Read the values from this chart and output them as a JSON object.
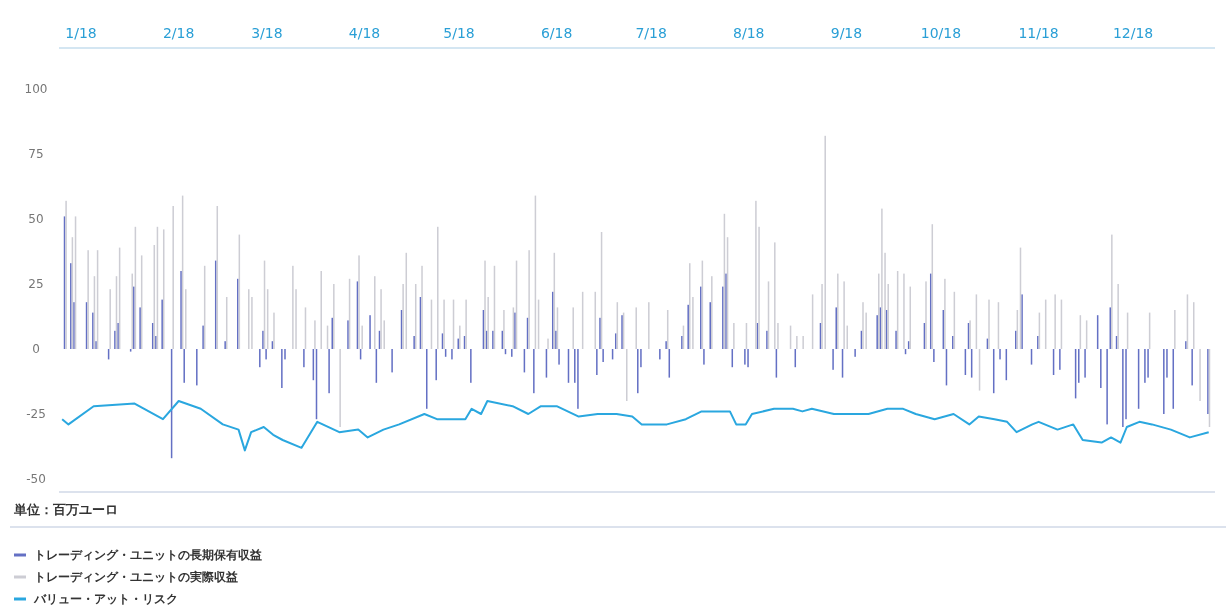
{
  "chart_data": {
    "type": "bar",
    "annotations": [
      "単位：百万ユーロ"
    ],
    "xlim": [
      "2017-12-25",
      "2018-12-27"
    ],
    "ylim": [
      -55,
      100
    ],
    "xticks": [
      {
        "value": "2018-01-01",
        "label": "1/18"
      },
      {
        "value": "2018-02-01",
        "label": "2/18"
      },
      {
        "value": "2018-03-01",
        "label": "3/18"
      },
      {
        "value": "2018-04-01",
        "label": "4/18"
      },
      {
        "value": "2018-05-01",
        "label": "5/18"
      },
      {
        "value": "2018-06-01",
        "label": "6/18"
      },
      {
        "value": "2018-07-01",
        "label": "7/18"
      },
      {
        "value": "2018-08-01",
        "label": "8/18"
      },
      {
        "value": "2018-09-01",
        "label": "9/18"
      },
      {
        "value": "2018-10-01",
        "label": "10/18"
      },
      {
        "value": "2018-11-01",
        "label": "11/18"
      },
      {
        "value": "2018-12-01",
        "label": "12/18"
      }
    ],
    "yticks": [
      -50,
      -25,
      0,
      25,
      50,
      75,
      100
    ],
    "grid": false,
    "legend": "bottom",
    "series": [
      {
        "name": "トレーディング・ユニットの長期保有収益",
        "color": "#6470c4",
        "x": [
          "2017-12-27",
          "2017-12-29",
          "2017-12-30",
          "2018-01-03",
          "2018-01-05",
          "2018-01-06",
          "2018-01-10",
          "2018-01-12",
          "2018-01-13",
          "2018-01-17",
          "2018-01-18",
          "2018-01-20",
          "2018-01-24",
          "2018-01-25",
          "2018-01-27",
          "2018-01-30",
          "2018-02-02",
          "2018-02-03",
          "2018-02-07",
          "2018-02-09",
          "2018-02-13",
          "2018-02-16",
          "2018-02-20",
          "2018-02-27",
          "2018-02-28",
          "2018-03-01",
          "2018-03-03",
          "2018-03-06",
          "2018-03-07",
          "2018-03-13",
          "2018-03-16",
          "2018-03-17",
          "2018-03-21",
          "2018-03-22",
          "2018-03-27",
          "2018-03-30",
          "2018-03-31",
          "2018-04-03",
          "2018-04-05",
          "2018-04-06",
          "2018-04-10",
          "2018-04-13",
          "2018-04-17",
          "2018-04-19",
          "2018-04-21",
          "2018-04-24",
          "2018-04-26",
          "2018-04-27",
          "2018-04-29",
          "2018-05-01",
          "2018-05-03",
          "2018-05-05",
          "2018-05-09",
          "2018-05-10",
          "2018-05-12",
          "2018-05-15",
          "2018-05-16",
          "2018-05-18",
          "2018-05-19",
          "2018-05-22",
          "2018-05-23",
          "2018-05-25",
          "2018-05-29",
          "2018-05-31",
          "2018-06-01",
          "2018-06-02",
          "2018-06-05",
          "2018-06-07",
          "2018-06-08",
          "2018-06-14",
          "2018-06-15",
          "2018-06-16",
          "2018-06-19",
          "2018-06-20",
          "2018-06-22",
          "2018-06-27",
          "2018-06-28",
          "2018-07-04",
          "2018-07-06",
          "2018-07-07",
          "2018-07-11",
          "2018-07-13",
          "2018-07-17",
          "2018-07-18",
          "2018-07-20",
          "2018-07-24",
          "2018-07-25",
          "2018-07-27",
          "2018-07-31",
          "2018-08-01",
          "2018-08-04",
          "2018-08-07",
          "2018-08-10",
          "2018-08-16",
          "2018-08-24",
          "2018-08-28",
          "2018-08-29",
          "2018-08-31",
          "2018-09-04",
          "2018-09-06",
          "2018-09-11",
          "2018-09-12",
          "2018-09-14",
          "2018-09-17",
          "2018-09-20",
          "2018-09-21",
          "2018-09-26",
          "2018-09-28",
          "2018-09-29",
          "2018-10-02",
          "2018-10-03",
          "2018-10-05",
          "2018-10-09",
          "2018-10-10",
          "2018-10-11",
          "2018-10-16",
          "2018-10-18",
          "2018-10-20",
          "2018-10-22",
          "2018-10-25",
          "2018-10-27",
          "2018-10-30",
          "2018-11-01",
          "2018-11-06",
          "2018-11-08",
          "2018-11-13",
          "2018-11-14",
          "2018-11-16",
          "2018-11-20",
          "2018-11-21",
          "2018-11-23",
          "2018-11-24",
          "2018-11-26",
          "2018-11-28",
          "2018-11-29",
          "2018-12-03",
          "2018-12-05",
          "2018-12-06",
          "2018-12-11",
          "2018-12-12",
          "2018-12-14",
          "2018-12-18",
          "2018-12-20",
          "2018-12-25"
        ],
        "values": [
          51,
          33,
          18,
          18,
          14,
          3,
          -4,
          7,
          10,
          -1,
          24,
          16,
          10,
          5,
          19,
          -42,
          30,
          -13,
          -14,
          9,
          34,
          3,
          27,
          -7,
          7,
          -4,
          3,
          -15,
          -4,
          -7,
          -12,
          -27,
          -17,
          12,
          11,
          26,
          -4,
          13,
          -13,
          7,
          -9,
          15,
          5,
          20,
          -23,
          -12,
          6,
          -3,
          -4,
          4,
          5,
          -13,
          15,
          7,
          7,
          7,
          -2,
          -3,
          14,
          -9,
          12,
          -17,
          -11,
          22,
          7,
          -6,
          -13,
          -13,
          -23,
          -10,
          12,
          -5,
          -4,
          6,
          13,
          -17,
          -7,
          -4,
          3,
          -11,
          5,
          17,
          24,
          -6,
          18,
          24,
          29,
          -7,
          -6,
          -7,
          10,
          7,
          -11,
          -7,
          10,
          -8,
          16,
          -11,
          -3,
          7,
          13,
          16,
          15,
          7,
          -2,
          3,
          10,
          29,
          -5,
          15,
          -14,
          5,
          -10,
          10,
          -11,
          4,
          -17,
          -4,
          -12,
          7,
          21,
          -6,
          5,
          -10,
          -8,
          -19,
          -13,
          -11,
          13,
          -15,
          -29,
          16,
          5,
          -30,
          -27,
          -23,
          -13,
          -11,
          -25,
          -11,
          -23,
          3,
          -14,
          -25
        ]
      },
      {
        "name": "トレーディング・ユニットの実際収益",
        "color": "#cdcdd4",
        "x": [
          "2017-12-27",
          "2017-12-29",
          "2017-12-30",
          "2018-01-03",
          "2018-01-05",
          "2018-01-06",
          "2018-01-10",
          "2018-01-12",
          "2018-01-13",
          "2018-01-17",
          "2018-01-18",
          "2018-01-20",
          "2018-01-24",
          "2018-01-25",
          "2018-01-27",
          "2018-01-30",
          "2018-02-02",
          "2018-02-03",
          "2018-02-09",
          "2018-02-13",
          "2018-02-16",
          "2018-02-20",
          "2018-02-23",
          "2018-02-24",
          "2018-02-28",
          "2018-03-01",
          "2018-03-03",
          "2018-03-09",
          "2018-03-10",
          "2018-03-13",
          "2018-03-16",
          "2018-03-18",
          "2018-03-20",
          "2018-03-22",
          "2018-03-24",
          "2018-03-27",
          "2018-03-30",
          "2018-03-31",
          "2018-04-04",
          "2018-04-06",
          "2018-04-07",
          "2018-04-13",
          "2018-04-14",
          "2018-04-17",
          "2018-04-19",
          "2018-04-22",
          "2018-04-24",
          "2018-04-26",
          "2018-04-29",
          "2018-05-01",
          "2018-05-03",
          "2018-05-09",
          "2018-05-10",
          "2018-05-12",
          "2018-05-15",
          "2018-05-18",
          "2018-05-19",
          "2018-05-23",
          "2018-05-25",
          "2018-05-26",
          "2018-05-29",
          "2018-05-31",
          "2018-06-01",
          "2018-06-06",
          "2018-06-09",
          "2018-06-13",
          "2018-06-15",
          "2018-06-20",
          "2018-06-22",
          "2018-06-23",
          "2018-06-26",
          "2018-06-30",
          "2018-07-06",
          "2018-07-11",
          "2018-07-13",
          "2018-07-14",
          "2018-07-17",
          "2018-07-20",
          "2018-07-24",
          "2018-07-25",
          "2018-07-27",
          "2018-07-31",
          "2018-08-03",
          "2018-08-04",
          "2018-08-07",
          "2018-08-09",
          "2018-08-10",
          "2018-08-14",
          "2018-08-16",
          "2018-08-18",
          "2018-08-21",
          "2018-08-24",
          "2018-08-25",
          "2018-08-29",
          "2018-08-31",
          "2018-09-01",
          "2018-09-06",
          "2018-09-07",
          "2018-09-11",
          "2018-09-12",
          "2018-09-13",
          "2018-09-14",
          "2018-09-17",
          "2018-09-19",
          "2018-09-21",
          "2018-09-26",
          "2018-09-28",
          "2018-10-02",
          "2018-10-05",
          "2018-10-10",
          "2018-10-12",
          "2018-10-13",
          "2018-10-16",
          "2018-10-19",
          "2018-10-25",
          "2018-10-26",
          "2018-11-01",
          "2018-11-03",
          "2018-11-06",
          "2018-11-08",
          "2018-11-14",
          "2018-11-16",
          "2018-11-24",
          "2018-11-26",
          "2018-11-29",
          "2018-12-06",
          "2018-12-14",
          "2018-12-18",
          "2018-12-20",
          "2018-12-22",
          "2018-12-25"
        ],
        "values": [
          57,
          43,
          51,
          38,
          28,
          38,
          23,
          28,
          39,
          29,
          47,
          36,
          40,
          47,
          46,
          55,
          59,
          23,
          32,
          55,
          20,
          44,
          23,
          20,
          34,
          23,
          14,
          32,
          23,
          16,
          11,
          30,
          9,
          25,
          -30,
          27,
          36,
          9,
          28,
          23,
          11,
          25,
          37,
          25,
          32,
          19,
          47,
          19,
          19,
          9,
          19,
          34,
          20,
          32,
          15,
          16,
          34,
          38,
          59,
          19,
          4,
          37,
          16,
          16,
          22,
          22,
          45,
          18,
          14,
          -20,
          16,
          18,
          15,
          9,
          33,
          20,
          34,
          28,
          52,
          43,
          10,
          10,
          57,
          47,
          26,
          41,
          10,
          9,
          5,
          5,
          21,
          25,
          82,
          29,
          26,
          9,
          18,
          14,
          29,
          54,
          37,
          25,
          30,
          29,
          24,
          26,
          48,
          27,
          22,
          11,
          21,
          -16,
          19,
          18,
          15,
          39,
          14,
          19,
          21,
          19,
          13,
          11,
          44,
          25,
          14,
          14,
          15,
          21,
          18,
          -20,
          -30
        ]
      },
      {
        "name": "バリュー・アット・リスク",
        "type": "line",
        "color": "#2aa7df",
        "x": [
          "2017-12-26",
          "2017-12-28",
          "2018-01-05",
          "2018-01-18",
          "2018-01-27",
          "2018-02-01",
          "2018-02-08",
          "2018-02-15",
          "2018-02-20",
          "2018-02-22",
          "2018-02-24",
          "2018-02-28",
          "2018-03-03",
          "2018-03-06",
          "2018-03-12",
          "2018-03-17",
          "2018-03-24",
          "2018-03-30",
          "2018-04-02",
          "2018-04-07",
          "2018-04-12",
          "2018-04-20",
          "2018-04-24",
          "2018-04-28",
          "2018-05-03",
          "2018-05-05",
          "2018-05-08",
          "2018-05-10",
          "2018-05-18",
          "2018-05-23",
          "2018-05-27",
          "2018-06-01",
          "2018-06-08",
          "2018-06-14",
          "2018-06-20",
          "2018-06-25",
          "2018-06-28",
          "2018-07-06",
          "2018-07-12",
          "2018-07-17",
          "2018-07-26",
          "2018-07-28",
          "2018-07-31",
          "2018-08-02",
          "2018-08-09",
          "2018-08-15",
          "2018-08-18",
          "2018-08-21",
          "2018-08-28",
          "2018-09-03",
          "2018-09-08",
          "2018-09-14",
          "2018-09-19",
          "2018-09-23",
          "2018-09-29",
          "2018-10-05",
          "2018-10-10",
          "2018-10-13",
          "2018-10-18",
          "2018-10-22",
          "2018-10-25",
          "2018-10-30",
          "2018-11-01",
          "2018-11-07",
          "2018-11-12",
          "2018-11-15",
          "2018-11-21",
          "2018-11-24",
          "2018-11-27",
          "2018-11-29",
          "2018-12-03",
          "2018-12-07",
          "2018-12-13",
          "2018-12-19",
          "2018-12-25"
        ],
        "values": [
          -27,
          -29,
          -22,
          -21,
          -27,
          -20,
          -23,
          -29,
          -31,
          -39,
          -32,
          -30,
          -33,
          -35,
          -38,
          -28,
          -32,
          -31,
          -34,
          -31,
          -29,
          -25,
          -27,
          -27,
          -27,
          -23,
          -25,
          -20,
          -22,
          -25,
          -22,
          -22,
          -26,
          -25,
          -25,
          -26,
          -29,
          -29,
          -27,
          -24,
          -24,
          -29,
          -29,
          -25,
          -23,
          -23,
          -24,
          -23,
          -25,
          -25,
          -25,
          -23,
          -23,
          -25,
          -27,
          -25,
          -29,
          -26,
          -27,
          -28,
          -32,
          -29,
          -28,
          -31,
          -29,
          -35,
          -36,
          -34,
          -36,
          -30,
          -28,
          -29,
          -31,
          -34,
          -32
        ]
      }
    ]
  }
}
